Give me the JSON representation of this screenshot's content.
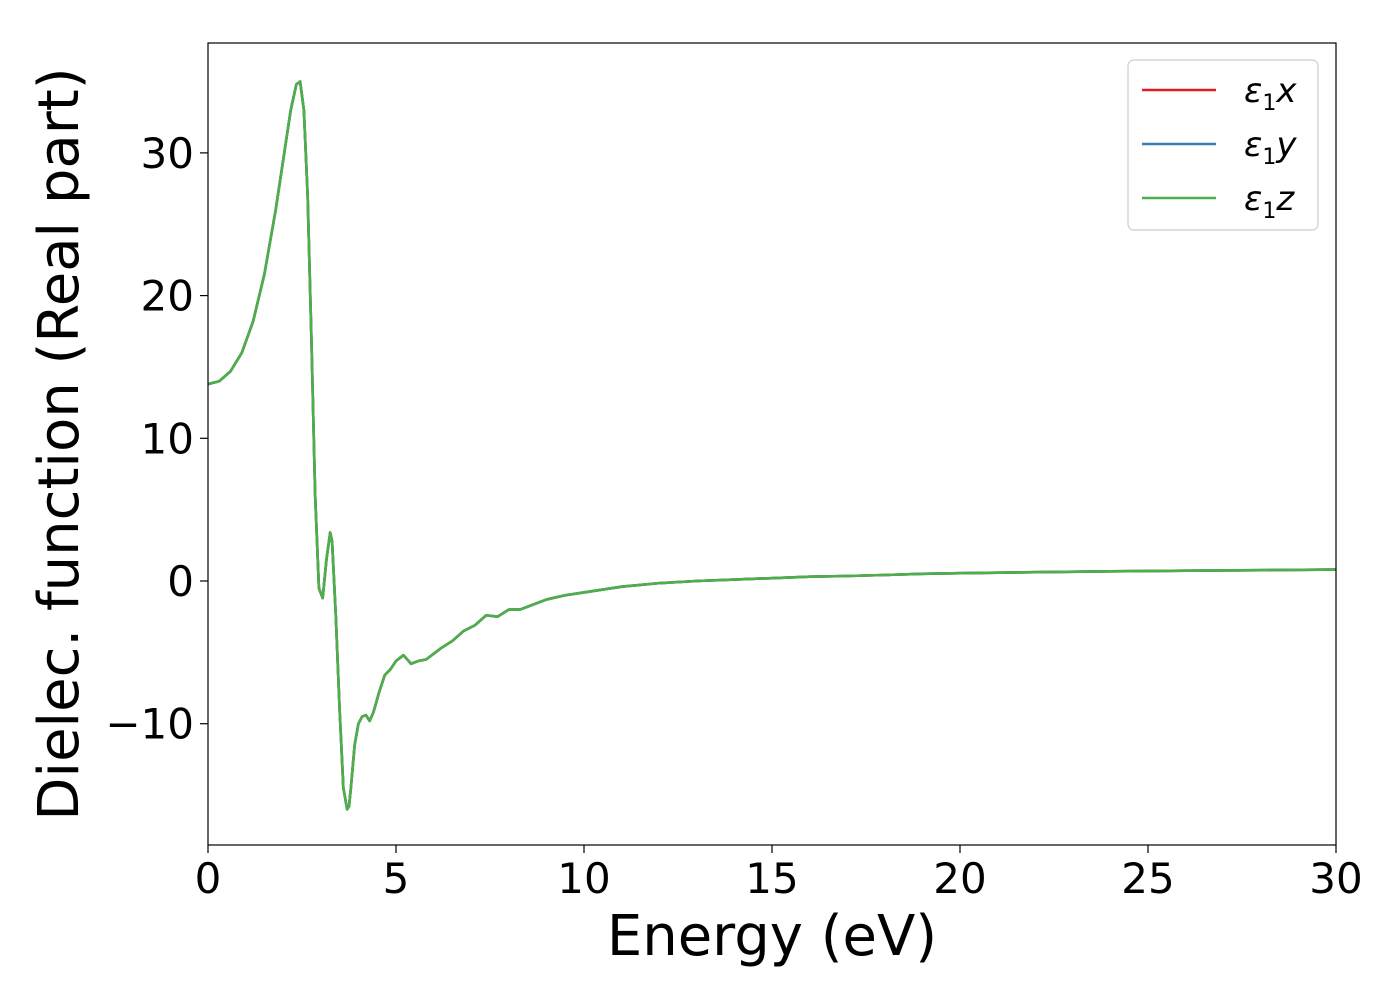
{
  "chart_data": {
    "type": "line",
    "xlabel": "Energy (eV)",
    "ylabel": "Dielec. function (Real part)",
    "xlim": [
      0,
      30
    ],
    "ylim": [
      -18.5,
      37.7
    ],
    "xticks": [
      0,
      5,
      10,
      15,
      20,
      25,
      30
    ],
    "xtick_labels": [
      "0",
      "5",
      "10",
      "15",
      "20",
      "25",
      "30"
    ],
    "yticks": [
      -10,
      0,
      10,
      20,
      30
    ],
    "ytick_labels": [
      "−10",
      "0",
      "10",
      "20",
      "30"
    ],
    "grid": false,
    "legend_position": "top-right",
    "x": [
      0,
      0.3,
      0.6,
      0.9,
      1.2,
      1.5,
      1.8,
      2.0,
      2.2,
      2.35,
      2.45,
      2.55,
      2.65,
      2.75,
      2.85,
      2.95,
      3.05,
      3.15,
      3.25,
      3.3,
      3.4,
      3.5,
      3.6,
      3.7,
      3.75,
      3.8,
      3.9,
      4.0,
      4.1,
      4.2,
      4.3,
      4.4,
      4.55,
      4.7,
      4.85,
      5.0,
      5.2,
      5.4,
      5.6,
      5.8,
      6.0,
      6.2,
      6.5,
      6.8,
      7.1,
      7.4,
      7.7,
      8.0,
      8.3,
      8.6,
      9.0,
      9.5,
      10.0,
      10.5,
      11.0,
      12.0,
      13.0,
      14.0,
      15.0,
      16.0,
      17.0,
      18.0,
      19.0,
      20.0,
      22.0,
      24.0,
      26.0,
      28.0,
      30.0
    ],
    "series": [
      {
        "name": "ε₁x",
        "color": "#e41a1c",
        "y": [
          13.8,
          14.0,
          14.7,
          16.0,
          18.2,
          21.5,
          26.0,
          29.5,
          33.0,
          34.8,
          35.0,
          33.0,
          27.0,
          17.0,
          6.0,
          -0.5,
          -1.2,
          1.5,
          3.4,
          2.8,
          -2.5,
          -9.0,
          -14.5,
          -16.0,
          -15.8,
          -14.5,
          -11.5,
          -10.0,
          -9.5,
          -9.4,
          -9.8,
          -9.2,
          -7.8,
          -6.6,
          -6.2,
          -5.6,
          -5.2,
          -5.8,
          -5.6,
          -5.5,
          -5.1,
          -4.7,
          -4.2,
          -3.5,
          -3.1,
          -2.4,
          -2.5,
          -2.0,
          -2.0,
          -1.7,
          -1.3,
          -1.0,
          -0.8,
          -0.6,
          -0.4,
          -0.15,
          0.0,
          0.1,
          0.2,
          0.3,
          0.35,
          0.42,
          0.5,
          0.55,
          0.62,
          0.68,
          0.72,
          0.76,
          0.8
        ]
      },
      {
        "name": "ε₁y",
        "color": "#377eb8",
        "y": [
          13.8,
          14.0,
          14.7,
          16.0,
          18.2,
          21.5,
          26.0,
          29.5,
          33.0,
          34.8,
          35.0,
          33.0,
          27.0,
          17.0,
          6.0,
          -0.5,
          -1.2,
          1.5,
          3.4,
          2.8,
          -2.5,
          -9.0,
          -14.5,
          -16.0,
          -15.8,
          -14.5,
          -11.5,
          -10.0,
          -9.5,
          -9.4,
          -9.8,
          -9.2,
          -7.8,
          -6.6,
          -6.2,
          -5.6,
          -5.2,
          -5.8,
          -5.6,
          -5.5,
          -5.1,
          -4.7,
          -4.2,
          -3.5,
          -3.1,
          -2.4,
          -2.5,
          -2.0,
          -2.0,
          -1.7,
          -1.3,
          -1.0,
          -0.8,
          -0.6,
          -0.4,
          -0.15,
          0.0,
          0.1,
          0.2,
          0.3,
          0.35,
          0.42,
          0.5,
          0.55,
          0.62,
          0.68,
          0.72,
          0.76,
          0.8
        ]
      },
      {
        "name": "ε₁z",
        "color": "#4daf4a",
        "y": [
          13.8,
          14.0,
          14.7,
          16.0,
          18.2,
          21.5,
          26.0,
          29.5,
          33.0,
          34.8,
          35.0,
          33.0,
          27.0,
          17.0,
          6.0,
          -0.5,
          -1.2,
          1.5,
          3.4,
          2.8,
          -2.5,
          -9.0,
          -14.5,
          -16.0,
          -15.8,
          -14.5,
          -11.5,
          -10.0,
          -9.5,
          -9.4,
          -9.8,
          -9.2,
          -7.8,
          -6.6,
          -6.2,
          -5.6,
          -5.2,
          -5.8,
          -5.6,
          -5.5,
          -5.1,
          -4.7,
          -4.2,
          -3.5,
          -3.1,
          -2.4,
          -2.5,
          -2.0,
          -2.0,
          -1.7,
          -1.3,
          -1.0,
          -0.8,
          -0.6,
          -0.4,
          -0.15,
          0.0,
          0.1,
          0.2,
          0.3,
          0.35,
          0.42,
          0.5,
          0.55,
          0.62,
          0.68,
          0.72,
          0.76,
          0.8
        ]
      }
    ]
  }
}
